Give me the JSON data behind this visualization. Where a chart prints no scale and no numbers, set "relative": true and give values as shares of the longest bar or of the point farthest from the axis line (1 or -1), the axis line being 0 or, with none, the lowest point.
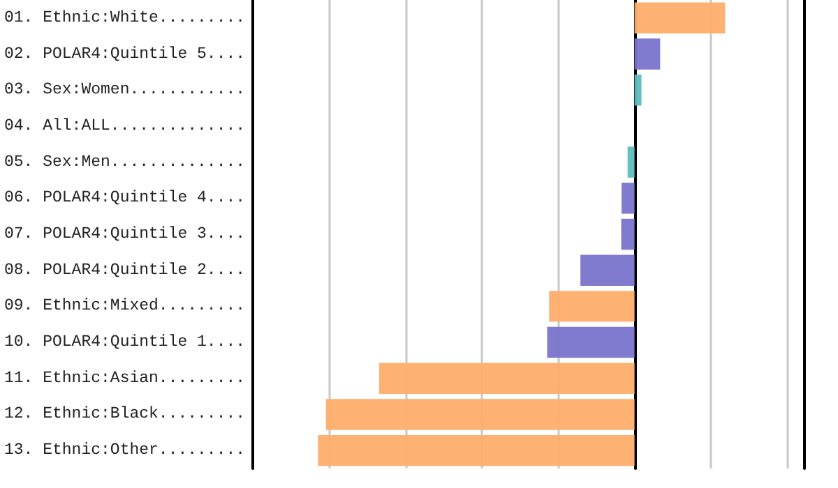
{
  "chart_data": {
    "type": "bar",
    "orientation": "horizontal",
    "relative": true,
    "grid": "x",
    "categories": [
      "01. Ethnic:White.........",
      "02. POLAR4:Quintile 5....",
      "03. Sex:Women............",
      "04. All:ALL..............",
      "05. Sex:Men..............",
      "06. POLAR4:Quintile 4....",
      "07. POLAR4:Quintile 3....",
      "08. POLAR4:Quintile 2....",
      "09. Ethnic:Mixed.........",
      "10. POLAR4:Quintile 1....",
      "11. Ethnic:Asian.........",
      "12. Ethnic:Black.........",
      "13. Ethnic:Other........."
    ],
    "values": [
      0.286,
      0.081,
      0.022,
      0,
      -0.022,
      -0.041,
      -0.042,
      -0.171,
      -0.27,
      -0.276,
      -0.807,
      -0.975,
      -1
    ],
    "colors": [
      "#fdae6b",
      "#7a74cc",
      "#5fbcbc",
      "#5fbcbc",
      "#5fbcbc",
      "#7a74cc",
      "#7a74cc",
      "#7a74cc",
      "#fdae6b",
      "#7a74cc",
      "#fdae6b",
      "#fdae6b",
      "#fdae6b"
    ]
  }
}
